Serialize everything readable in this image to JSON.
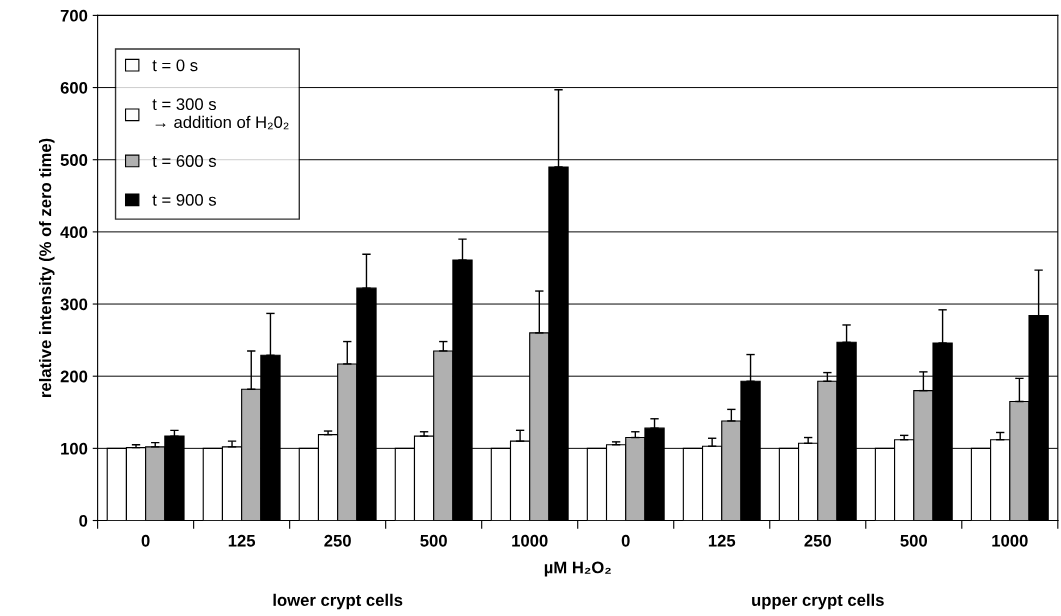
{
  "chart_data": {
    "type": "bar",
    "ylabel": "relative intensity (% of zero time)",
    "xlabel": "µM H₂O₂",
    "annotations": [
      "lower crypt cells",
      "upper crypt cells"
    ],
    "categories": [
      "0",
      "125",
      "250",
      "500",
      "1000",
      "0",
      "125",
      "250",
      "500",
      "1000"
    ],
    "series": [
      {
        "name": "t = 0 s",
        "color": "#ffffff",
        "values": [
          100,
          100,
          100,
          100,
          100,
          100,
          100,
          100,
          100,
          100
        ]
      },
      {
        "name": "t = 300 s\n→ addition of H₂0₂",
        "color": "#ffffff",
        "values": [
          101,
          102,
          119,
          117,
          110,
          105,
          103,
          107,
          112,
          112
        ],
        "errors": [
          4,
          8,
          5,
          6,
          15,
          4,
          11,
          8,
          6,
          10
        ]
      },
      {
        "name": "t = 600 s",
        "color": "#b0b0b0",
        "values": [
          102,
          182,
          217,
          235,
          260,
          115,
          138,
          193,
          180,
          165
        ],
        "errors": [
          6,
          53,
          31,
          13,
          58,
          8,
          16,
          12,
          26,
          32
        ]
      },
      {
        "name": "t = 900 s",
        "color": "#000000",
        "values": [
          117,
          229,
          322,
          361,
          490,
          128,
          193,
          247,
          246,
          284
        ],
        "errors": [
          8,
          58,
          47,
          29,
          107,
          13,
          37,
          24,
          46,
          63
        ]
      }
    ],
    "ylim": [
      0,
      700
    ],
    "yticks": [
      0,
      100,
      200,
      300,
      400,
      500,
      600,
      700
    ],
    "grid": "y",
    "legend": "top left"
  }
}
